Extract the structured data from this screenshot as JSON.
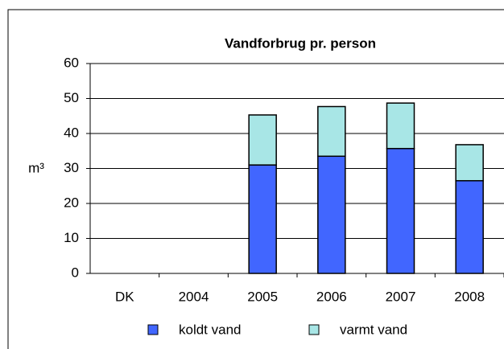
{
  "chart_data": {
    "type": "stacked_bar",
    "title": "Vandforbrug pr. person",
    "y_label": "m³",
    "categories": [
      "DK",
      "2004",
      "2005",
      "2006",
      "2007",
      "2008"
    ],
    "series": [
      {
        "name": "koldt vand",
        "color": "#4166ff",
        "values": [
          null,
          null,
          31,
          33.5,
          35.7,
          26.5
        ]
      },
      {
        "name": "varmt vand",
        "color": "#a8e6e6",
        "values": [
          null,
          null,
          14.3,
          14.2,
          13,
          10.3
        ]
      }
    ],
    "ylim": [
      0,
      60
    ],
    "yticks": [
      0,
      10,
      20,
      30,
      40,
      50,
      60
    ],
    "grid": true,
    "legend": "bottom"
  }
}
